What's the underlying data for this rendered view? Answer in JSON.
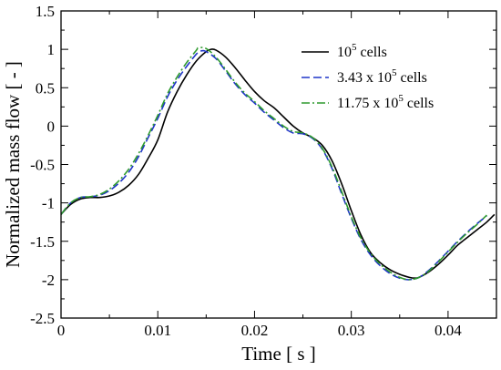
{
  "chart_data": {
    "type": "line",
    "xlabel": "Time [ s ]",
    "ylabel": "Normalized mass flow [ - ]",
    "xlim": [
      0,
      0.045
    ],
    "ylim": [
      -2.5,
      1.5
    ],
    "x_ticks": [
      "0",
      "0.01",
      "0.02",
      "0.03",
      "0.04"
    ],
    "y_ticks": [
      "1.5",
      "1",
      "0.5",
      "0",
      "-0.5",
      "-1",
      "-1.5",
      "-2",
      "-2.5"
    ],
    "grid": false,
    "legend_position": "top-right",
    "series": [
      {
        "name_base": "10",
        "name_exp": "5",
        "name_suffix": " cells",
        "color": "#000000",
        "dash": "",
        "points": [
          [
            0,
            -1.15
          ],
          [
            0.001,
            -1.02
          ],
          [
            0.002,
            -0.95
          ],
          [
            0.003,
            -0.93
          ],
          [
            0.004,
            -0.93
          ],
          [
            0.005,
            -0.91
          ],
          [
            0.006,
            -0.86
          ],
          [
            0.007,
            -0.77
          ],
          [
            0.008,
            -0.63
          ],
          [
            0.009,
            -0.42
          ],
          [
            0.01,
            -0.18
          ],
          [
            0.011,
            0.18
          ],
          [
            0.012,
            0.45
          ],
          [
            0.013,
            0.67
          ],
          [
            0.014,
            0.85
          ],
          [
            0.015,
            0.97
          ],
          [
            0.0155,
            1.0
          ],
          [
            0.016,
            0.99
          ],
          [
            0.017,
            0.9
          ],
          [
            0.018,
            0.76
          ],
          [
            0.019,
            0.6
          ],
          [
            0.02,
            0.45
          ],
          [
            0.021,
            0.33
          ],
          [
            0.022,
            0.24
          ],
          [
            0.023,
            0.12
          ],
          [
            0.024,
            0.0
          ],
          [
            0.025,
            -0.09
          ],
          [
            0.026,
            -0.15
          ],
          [
            0.027,
            -0.25
          ],
          [
            0.028,
            -0.45
          ],
          [
            0.029,
            -0.75
          ],
          [
            0.03,
            -1.1
          ],
          [
            0.031,
            -1.42
          ],
          [
            0.032,
            -1.65
          ],
          [
            0.033,
            -1.78
          ],
          [
            0.034,
            -1.87
          ],
          [
            0.035,
            -1.93
          ],
          [
            0.036,
            -1.97
          ],
          [
            0.0365,
            -1.98
          ],
          [
            0.037,
            -1.97
          ],
          [
            0.038,
            -1.9
          ],
          [
            0.039,
            -1.8
          ],
          [
            0.04,
            -1.68
          ],
          [
            0.041,
            -1.55
          ],
          [
            0.042,
            -1.45
          ],
          [
            0.043,
            -1.35
          ],
          [
            0.044,
            -1.25
          ],
          [
            0.0448,
            -1.15
          ]
        ]
      },
      {
        "name_base": "3.43 x 10",
        "name_exp": "5",
        "name_suffix": " cells",
        "color": "#1f35c8",
        "dash": "9,4",
        "points": [
          [
            0,
            -1.15
          ],
          [
            0.001,
            -1.0
          ],
          [
            0.002,
            -0.93
          ],
          [
            0.003,
            -0.92
          ],
          [
            0.004,
            -0.9
          ],
          [
            0.005,
            -0.84
          ],
          [
            0.006,
            -0.74
          ],
          [
            0.007,
            -0.6
          ],
          [
            0.008,
            -0.4
          ],
          [
            0.009,
            -0.15
          ],
          [
            0.01,
            0.1
          ],
          [
            0.011,
            0.38
          ],
          [
            0.012,
            0.6
          ],
          [
            0.013,
            0.78
          ],
          [
            0.014,
            0.94
          ],
          [
            0.0145,
            0.98
          ],
          [
            0.015,
            0.97
          ],
          [
            0.016,
            0.88
          ],
          [
            0.017,
            0.72
          ],
          [
            0.018,
            0.55
          ],
          [
            0.019,
            0.41
          ],
          [
            0.02,
            0.3
          ],
          [
            0.021,
            0.18
          ],
          [
            0.022,
            0.08
          ],
          [
            0.023,
            -0.02
          ],
          [
            0.024,
            -0.09
          ],
          [
            0.025,
            -0.1
          ],
          [
            0.026,
            -0.16
          ],
          [
            0.027,
            -0.3
          ],
          [
            0.028,
            -0.55
          ],
          [
            0.029,
            -0.88
          ],
          [
            0.03,
            -1.2
          ],
          [
            0.031,
            -1.48
          ],
          [
            0.032,
            -1.68
          ],
          [
            0.033,
            -1.82
          ],
          [
            0.034,
            -1.92
          ],
          [
            0.035,
            -1.98
          ],
          [
            0.036,
            -2.0
          ],
          [
            0.037,
            -1.97
          ],
          [
            0.038,
            -1.88
          ],
          [
            0.039,
            -1.76
          ],
          [
            0.04,
            -1.63
          ],
          [
            0.041,
            -1.5
          ],
          [
            0.042,
            -1.38
          ],
          [
            0.043,
            -1.27
          ],
          [
            0.044,
            -1.17
          ]
        ]
      },
      {
        "name_base": "11.75 x 10",
        "name_exp": "5",
        "name_suffix": " cells",
        "color": "#2e9a2e",
        "dash": "9,3,2,3",
        "points": [
          [
            0,
            -1.15
          ],
          [
            0.001,
            -1.0
          ],
          [
            0.002,
            -0.93
          ],
          [
            0.003,
            -0.92
          ],
          [
            0.004,
            -0.89
          ],
          [
            0.005,
            -0.82
          ],
          [
            0.006,
            -0.71
          ],
          [
            0.007,
            -0.56
          ],
          [
            0.008,
            -0.36
          ],
          [
            0.009,
            -0.12
          ],
          [
            0.01,
            0.14
          ],
          [
            0.011,
            0.42
          ],
          [
            0.012,
            0.64
          ],
          [
            0.013,
            0.83
          ],
          [
            0.014,
            0.99
          ],
          [
            0.0142,
            1.02
          ],
          [
            0.015,
            1.01
          ],
          [
            0.016,
            0.9
          ],
          [
            0.017,
            0.74
          ],
          [
            0.018,
            0.57
          ],
          [
            0.019,
            0.43
          ],
          [
            0.02,
            0.32
          ],
          [
            0.021,
            0.2
          ],
          [
            0.022,
            0.1
          ],
          [
            0.023,
            0.0
          ],
          [
            0.024,
            -0.07
          ],
          [
            0.025,
            -0.09
          ],
          [
            0.026,
            -0.15
          ],
          [
            0.027,
            -0.29
          ],
          [
            0.028,
            -0.53
          ],
          [
            0.029,
            -0.85
          ],
          [
            0.03,
            -1.18
          ],
          [
            0.031,
            -1.46
          ],
          [
            0.032,
            -1.66
          ],
          [
            0.033,
            -1.8
          ],
          [
            0.034,
            -1.9
          ],
          [
            0.035,
            -1.97
          ],
          [
            0.036,
            -2.0
          ],
          [
            0.037,
            -1.97
          ],
          [
            0.038,
            -1.89
          ],
          [
            0.039,
            -1.77
          ],
          [
            0.04,
            -1.64
          ],
          [
            0.041,
            -1.51
          ],
          [
            0.042,
            -1.39
          ],
          [
            0.043,
            -1.28
          ],
          [
            0.044,
            -1.16
          ]
        ]
      }
    ]
  }
}
